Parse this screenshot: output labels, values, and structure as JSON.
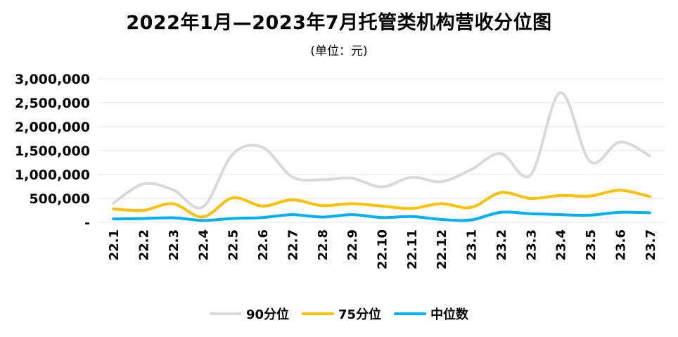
{
  "title": "2022年1月—2023年7月托管类机构营收分位图",
  "subtitle": "(单位：元)",
  "colors": {
    "p90": "#d9d9d9",
    "p75": "#ffc000",
    "median": "#00b0f0",
    "grid": "#e6e6e6"
  },
  "chart_data": {
    "type": "line",
    "categories": [
      "22.1",
      "22.2",
      "22.3",
      "22.4",
      "22.5",
      "22.6",
      "22.7",
      "22.8",
      "22.9",
      "22.10",
      "22.11",
      "22.12",
      "23.1",
      "23.2",
      "23.3",
      "23.4",
      "23.5",
      "23.6",
      "23.7"
    ],
    "ylim": [
      0,
      3000000
    ],
    "yticks": [
      {
        "value": 0,
        "label": "-"
      },
      {
        "value": 500000,
        "label": "500,000"
      },
      {
        "value": 1000000,
        "label": "1,000,000"
      },
      {
        "value": 1500000,
        "label": "1,500,000"
      },
      {
        "value": 2000000,
        "label": "2,000,000"
      },
      {
        "value": 2500000,
        "label": "2,500,000"
      },
      {
        "value": 3000000,
        "label": "3,000,000"
      }
    ],
    "grid": true,
    "legend_position": "bottom",
    "series": [
      {
        "name": "90分位",
        "color_key": "p90",
        "values": [
          400000,
          800000,
          680000,
          320000,
          1420000,
          1570000,
          950000,
          890000,
          920000,
          740000,
          940000,
          850000,
          1100000,
          1440000,
          990000,
          2710000,
          1270000,
          1680000,
          1390000
        ]
      },
      {
        "name": "75分位",
        "color_key": "p75",
        "values": [
          280000,
          250000,
          390000,
          110000,
          510000,
          340000,
          470000,
          350000,
          390000,
          340000,
          290000,
          390000,
          310000,
          620000,
          500000,
          560000,
          550000,
          670000,
          540000
        ]
      },
      {
        "name": "中位数",
        "color_key": "median",
        "values": [
          70000,
          80000,
          95000,
          40000,
          80000,
          100000,
          160000,
          110000,
          160000,
          100000,
          120000,
          60000,
          50000,
          210000,
          180000,
          160000,
          150000,
          210000,
          200000
        ]
      }
    ]
  }
}
